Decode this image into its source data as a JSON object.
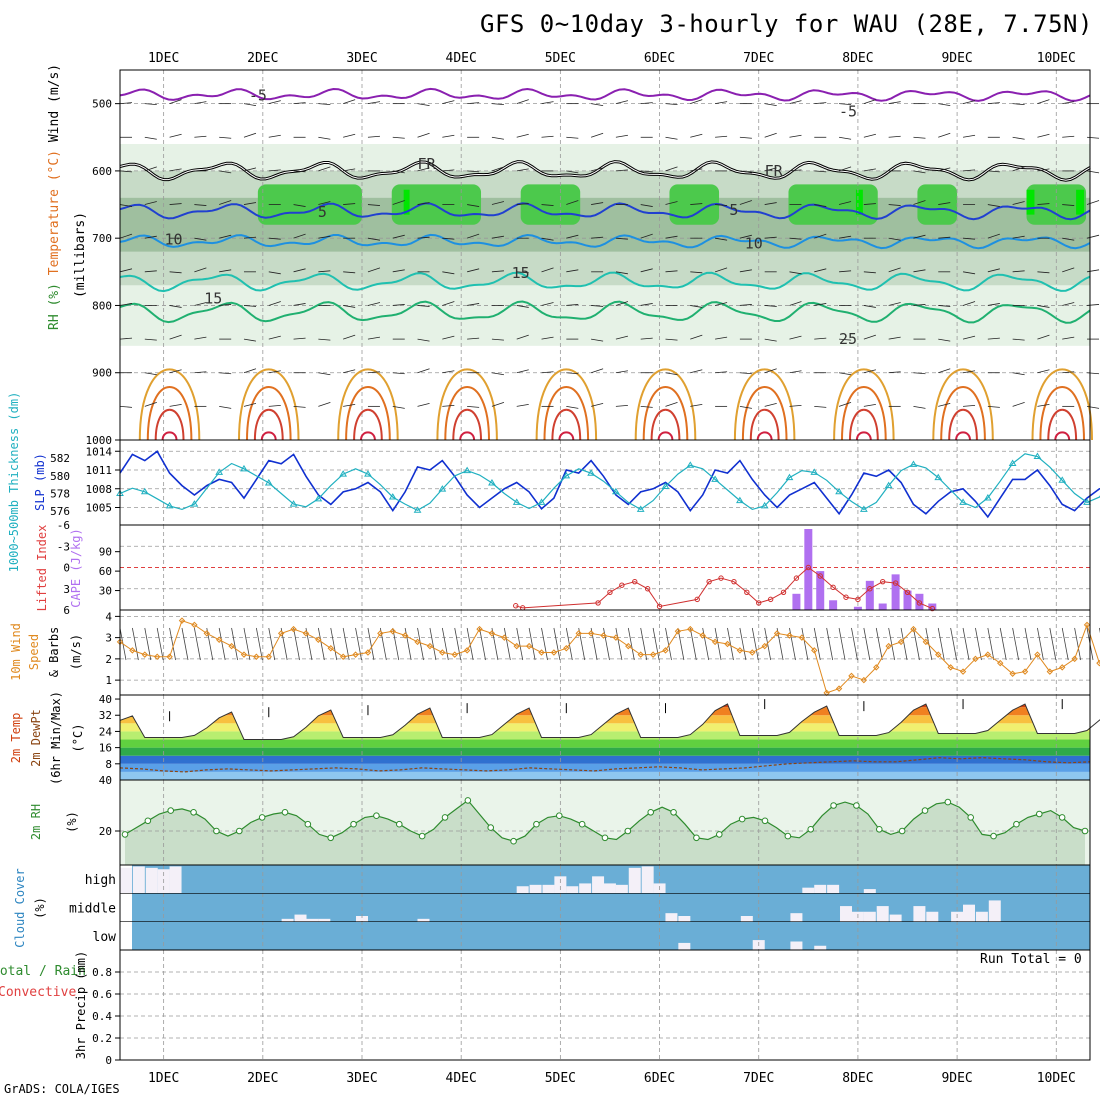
{
  "header": {
    "title": "GFS 0~10day 3-hourly for WAU (28E, 7.75N)",
    "credit": "GrADS: COLA/IGES",
    "run_total": "Run Total = 0"
  },
  "chart_data": [
    {
      "id": "upper-air",
      "type": "heatmap",
      "ylabel_parts": [
        {
          "text": "RH (%)",
          "color": "#2e8b2e"
        },
        {
          "text": "Temperature (°C)",
          "color": "#e07020"
        },
        {
          "text": "Wind (m/s)",
          "color": "#000000"
        },
        {
          "text": "(millibars)",
          "color": "#000000"
        }
      ],
      "xticks": [
        "1DEC",
        "2DEC",
        "3DEC",
        "4DEC",
        "5DEC",
        "6DEC",
        "7DEC",
        "8DEC",
        "9DEC",
        "10DEC"
      ],
      "yticks": [
        500,
        600,
        700,
        800,
        900,
        1000
      ],
      "ylim": [
        1000,
        450
      ],
      "contour_labels": [
        {
          "text": "-5",
          "day": 1.95,
          "p": 488
        },
        {
          "text": "-5",
          "day": 7.9,
          "p": 512
        },
        {
          "text": "FR",
          "day": 3.65,
          "p": 590
        },
        {
          "text": "FR",
          "day": 7.15,
          "p": 600
        },
        {
          "text": "5",
          "day": 2.6,
          "p": 661
        },
        {
          "text": "5",
          "day": 6.75,
          "p": 658
        },
        {
          "text": "10",
          "day": 1.1,
          "p": 702
        },
        {
          "text": "10",
          "day": 6.95,
          "p": 708
        },
        {
          "text": "15",
          "day": 1.5,
          "p": 790
        },
        {
          "text": "15",
          "day": 4.6,
          "p": 752
        },
        {
          "text": "25",
          "day": 7.9,
          "p": 850
        }
      ]
    },
    {
      "id": "slp-thickness",
      "type": "line",
      "ylabel_left": "1000~500mb Thickness (dm)",
      "ylabel_right": "SLP (mb)",
      "thickness_ticks": [
        576,
        578,
        580,
        582
      ],
      "slp_ticks": [
        1005,
        1008,
        1011,
        1014
      ],
      "series": [
        {
          "name": "SLP (mb)",
          "color": "#1030d0",
          "values": [
            1010.5,
            1013.5,
            1012.5,
            1014.0,
            1010.5,
            1008.5,
            1007.0,
            1008.5,
            1009.5,
            1009.0,
            1006.5,
            1009.5,
            1012.5,
            1012.0,
            1013.5,
            1010.0,
            1007.0,
            1005.5,
            1007.5,
            1008.0,
            1009.0,
            1007.5,
            1004.5,
            1007.5,
            1011.5,
            1011.0,
            1012.5,
            1010.0,
            1007.0,
            1005.0,
            1006.5,
            1008.0,
            1009.0,
            1007.5,
            1004.8,
            1006.5,
            1011.0,
            1010.5,
            1012.5,
            1010.0,
            1007.0,
            1005.5,
            1007.5,
            1008.0,
            1009.0,
            1007.5,
            1004.5,
            1007.0,
            1011.0,
            1010.5,
            1012.5,
            1009.5,
            1007.0,
            1005.0,
            1007.0,
            1008.0,
            1009.0,
            1006.5,
            1004.0,
            1007.0,
            1010.5,
            1010.0,
            1011.0,
            1009.0,
            1005.5,
            1004.0,
            1006.0,
            1007.5,
            1008.0,
            1006.0,
            1003.5,
            1006.5,
            1009.5,
            1009.5,
            1011.0,
            1008.5,
            1005.5,
            1004.5,
            1006.5,
            1008.0,
            1008.5,
            1006.5,
            1004.0,
            1007.0,
            1010.0
          ]
        },
        {
          "name": "1000~500mb Thickness (dm)",
          "color": "#20b0c0",
          "values": [
            578.0,
            578.6,
            578.2,
            577.4,
            576.6,
            576.2,
            576.8,
            578.6,
            580.4,
            581.4,
            580.8,
            580.0,
            579.2,
            578.0,
            576.8,
            576.5,
            577.4,
            578.9,
            580.2,
            580.8,
            580.2,
            579.0,
            577.6,
            576.8,
            576.1,
            576.9,
            578.5,
            580.0,
            580.6,
            580.1,
            579.2,
            578.0,
            577.0,
            576.3,
            577.0,
            578.6,
            580.0,
            580.8,
            580.3,
            579.4,
            578.2,
            577.0,
            576.2,
            577.2,
            578.8,
            580.2,
            581.2,
            580.8,
            579.6,
            578.4,
            577.2,
            576.2,
            576.6,
            578.1,
            579.8,
            580.6,
            580.4,
            579.5,
            578.2,
            577.1,
            576.2,
            577.0,
            578.9,
            580.6,
            581.3,
            580.9,
            579.8,
            578.4,
            577.0,
            576.4,
            577.5,
            579.4,
            581.4,
            582.5,
            582.2,
            581.0,
            579.5,
            578.0,
            577.0,
            577.6,
            579.5,
            581.4,
            582.4,
            582.0,
            580.3
          ]
        }
      ]
    },
    {
      "id": "cape-li",
      "type": "bar",
      "ylabel_left": "Lifted Index",
      "ylabel_right": "CAPE (J/kg)",
      "li_ticks": [
        "6",
        "3",
        "0",
        "-3",
        "-6"
      ],
      "cape_ticks": [
        30,
        60,
        90
      ],
      "cape_bars": [
        {
          "day": 7.38,
          "value": 25
        },
        {
          "day": 7.5,
          "value": 125
        },
        {
          "day": 7.62,
          "value": 60
        },
        {
          "day": 7.75,
          "value": 15
        },
        {
          "day": 8.0,
          "value": 5
        },
        {
          "day": 8.12,
          "value": 45
        },
        {
          "day": 8.25,
          "value": 10
        },
        {
          "day": 8.38,
          "value": 55
        },
        {
          "day": 8.5,
          "value": 30
        },
        {
          "day": 8.62,
          "value": 25
        },
        {
          "day": 8.75,
          "value": 10
        }
      ],
      "li_series": {
        "name": "Lifted Index",
        "color": "#d03030",
        "points": [
          [
            4.55,
            5.4
          ],
          [
            4.62,
            5.7
          ],
          [
            5.38,
            5.0
          ],
          [
            5.5,
            3.5
          ],
          [
            5.62,
            2.5
          ],
          [
            5.75,
            2.0
          ],
          [
            5.88,
            3.0
          ],
          [
            6.0,
            5.5
          ],
          [
            6.38,
            4.5
          ],
          [
            6.5,
            2.0
          ],
          [
            6.62,
            1.5
          ],
          [
            6.75,
            2.0
          ],
          [
            6.88,
            3.5
          ],
          [
            7.0,
            5.0
          ],
          [
            7.12,
            4.5
          ],
          [
            7.25,
            3.5
          ],
          [
            7.38,
            1.5
          ],
          [
            7.5,
            0.0
          ],
          [
            7.62,
            1.2
          ],
          [
            7.75,
            2.8
          ],
          [
            7.88,
            4.2
          ],
          [
            8.0,
            4.5
          ],
          [
            8.12,
            3.0
          ],
          [
            8.25,
            2.0
          ],
          [
            8.38,
            2.2
          ],
          [
            8.5,
            3.5
          ],
          [
            8.62,
            5.0
          ],
          [
            8.75,
            5.8
          ]
        ]
      }
    },
    {
      "id": "wind10m",
      "type": "line",
      "ylabel": "10m Wind Speed & Barbs (m/s)",
      "yticks": [
        1,
        2,
        3,
        4
      ],
      "series": [
        {
          "name": "10m Wind Speed",
          "color": "#e08a20",
          "values": [
            2.8,
            2.4,
            2.2,
            2.1,
            2.1,
            3.8,
            3.6,
            3.2,
            2.9,
            2.6,
            2.2,
            2.1,
            2.1,
            3.2,
            3.4,
            3.2,
            2.9,
            2.5,
            2.1,
            2.2,
            2.3,
            3.2,
            3.3,
            3.1,
            2.8,
            2.6,
            2.3,
            2.2,
            2.4,
            3.4,
            3.2,
            3.0,
            2.6,
            2.6,
            2.3,
            2.3,
            2.5,
            3.2,
            3.2,
            3.1,
            3.0,
            2.6,
            2.2,
            2.2,
            2.4,
            3.3,
            3.4,
            3.1,
            2.8,
            2.7,
            2.4,
            2.3,
            2.6,
            3.2,
            3.1,
            3.0,
            2.4,
            0.4,
            0.6,
            1.2,
            1.0,
            1.6,
            2.6,
            2.8,
            3.4,
            2.8,
            2.2,
            1.6,
            1.4,
            2.0,
            2.2,
            1.8,
            1.3,
            1.4,
            2.2,
            1.4,
            1.6,
            2.0,
            3.6,
            1.8,
            1.6,
            2.2,
            1.2,
            1.8,
            2.0
          ]
        }
      ]
    },
    {
      "id": "temp2m",
      "type": "area",
      "ylabel": "2m Temp 2m DewPt (6hr Min/Max) (°C)",
      "yticks": [
        8,
        16,
        24,
        32,
        40
      ],
      "ylim": [
        0,
        40
      ],
      "series": [
        {
          "name": "2m Temp",
          "color": "#d04010",
          "daily_max": [
            32,
            34,
            35,
            36,
            36,
            36,
            38,
            37,
            38,
            38
          ],
          "daily_min": [
            21,
            20,
            21,
            21,
            21,
            21,
            22,
            22,
            23,
            23
          ]
        },
        {
          "name": "2m DewPt",
          "color": "#8b4513",
          "values": [
            6,
            5.5,
            4.5,
            4,
            5,
            5.5,
            5,
            4.5,
            5,
            5.5,
            6,
            5.5,
            4.5,
            5,
            6,
            5.5,
            5,
            4.5,
            5,
            6,
            5.5,
            5,
            4.5,
            5.5,
            6,
            6.5,
            6,
            5,
            5.5,
            6,
            7,
            8,
            8.5,
            9,
            9.5,
            9,
            9,
            10,
            11,
            10.5,
            11,
            10.5,
            10,
            9,
            8.5,
            9
          ]
        }
      ]
    },
    {
      "id": "rh2m",
      "type": "area",
      "ylabel": "2m RH (%)",
      "yticks": [
        20
      ],
      "ylim": [
        0,
        50
      ],
      "series": [
        {
          "name": "2m RH",
          "color": "#2e8b2e",
          "values": [
            18,
            22,
            26,
            30,
            32,
            33,
            31,
            27,
            20,
            17,
            20,
            25,
            28,
            30,
            31,
            29,
            24,
            18,
            16,
            19,
            24,
            28,
            29,
            27,
            24,
            20,
            17,
            21,
            28,
            33,
            38,
            30,
            22,
            16,
            14,
            17,
            24,
            28,
            29,
            27,
            24,
            20,
            16,
            15,
            20,
            26,
            31,
            34,
            31,
            24,
            16,
            15,
            18,
            24,
            27,
            28,
            26,
            22,
            17,
            16,
            21,
            29,
            35,
            37,
            35,
            30,
            21,
            18,
            20,
            27,
            32,
            36,
            37,
            34,
            28,
            18,
            17,
            19,
            24,
            28,
            30,
            32,
            28,
            22,
            20
          ]
        }
      ]
    },
    {
      "id": "cloud-cover",
      "type": "bar",
      "ylabel": "Cloud Cover (%)",
      "levels": [
        "high",
        "middle",
        "low"
      ],
      "high_bars": [
        {
          "day": 0.62,
          "value": 0.9
        },
        {
          "day": 0.75,
          "value": 0.95
        },
        {
          "day": 0.88,
          "value": 0.9
        },
        {
          "day": 1.0,
          "value": 0.85
        },
        {
          "day": 1.12,
          "value": 0.95
        },
        {
          "day": 4.62,
          "value": 0.25
        },
        {
          "day": 4.75,
          "value": 0.3
        },
        {
          "day": 4.88,
          "value": 0.3
        },
        {
          "day": 5.0,
          "value": 0.6
        },
        {
          "day": 5.12,
          "value": 0.25
        },
        {
          "day": 5.25,
          "value": 0.35
        },
        {
          "day": 5.38,
          "value": 0.6
        },
        {
          "day": 5.5,
          "value": 0.35
        },
        {
          "day": 5.62,
          "value": 0.3
        },
        {
          "day": 5.75,
          "value": 0.9
        },
        {
          "day": 5.88,
          "value": 0.95
        },
        {
          "day": 6.0,
          "value": 0.35
        },
        {
          "day": 7.5,
          "value": 0.2
        },
        {
          "day": 7.62,
          "value": 0.3
        },
        {
          "day": 7.75,
          "value": 0.3
        },
        {
          "day": 8.12,
          "value": 0.15
        }
      ],
      "mid_bars": [
        {
          "day": 2.25,
          "value": 0.1
        },
        {
          "day": 2.38,
          "value": 0.25
        },
        {
          "day": 2.5,
          "value": 0.1
        },
        {
          "day": 2.62,
          "value": 0.1
        },
        {
          "day": 3.0,
          "value": 0.2
        },
        {
          "day": 3.62,
          "value": 0.1
        },
        {
          "day": 6.12,
          "value": 0.3
        },
        {
          "day": 6.25,
          "value": 0.2
        },
        {
          "day": 6.88,
          "value": 0.2
        },
        {
          "day": 7.38,
          "value": 0.3
        },
        {
          "day": 7.88,
          "value": 0.55
        },
        {
          "day": 8.0,
          "value": 0.35
        },
        {
          "day": 8.12,
          "value": 0.35
        },
        {
          "day": 8.25,
          "value": 0.55
        },
        {
          "day": 8.38,
          "value": 0.25
        },
        {
          "day": 8.62,
          "value": 0.55
        },
        {
          "day": 8.75,
          "value": 0.35
        },
        {
          "day": 9.0,
          "value": 0.35
        },
        {
          "day": 9.12,
          "value": 0.6
        },
        {
          "day": 9.25,
          "value": 0.35
        },
        {
          "day": 9.38,
          "value": 0.75
        }
      ],
      "low_bars": [
        {
          "day": 6.25,
          "value": 0.25
        },
        {
          "day": 7.0,
          "value": 0.35
        },
        {
          "day": 7.38,
          "value": 0.3
        },
        {
          "day": 7.62,
          "value": 0.15
        }
      ]
    },
    {
      "id": "precip",
      "type": "bar",
      "ylabel_left": "Total / Rain Convective",
      "ylabel_right": "3hr Precip (mm)",
      "yticks": [
        0,
        0.2,
        0.4,
        0.6,
        0.8
      ],
      "ylim": [
        0,
        1.0
      ],
      "values": []
    }
  ],
  "colors": {
    "rh_light": "#e6f2e6",
    "rh_mid": "#c7dbc7",
    "rh_dark": "#9fbf9f",
    "rh_green": "#4cc94c",
    "rh_bright": "#00e600",
    "cloud_blue": "#6aaed6",
    "cloud_white": "#f4f0f8",
    "cape_bar": "#b070f0"
  }
}
